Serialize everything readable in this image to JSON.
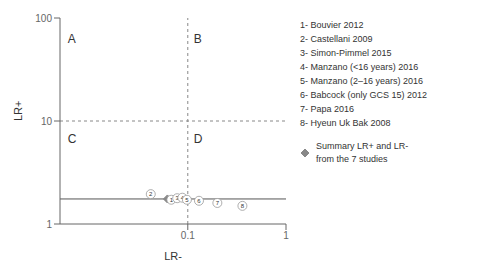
{
  "chart_data": {
    "type": "scatter",
    "xlabel": "LR-",
    "ylabel": "LR+",
    "log": true,
    "xlim": [
      0.005,
      1.0
    ],
    "ylim": [
      1.0,
      100.0
    ],
    "xticks": [
      0.1,
      1
    ],
    "yticks": [
      1,
      10,
      100
    ],
    "series": [
      {
        "type": "scatter",
        "marker": "circle",
        "color": "#999999",
        "x": [
          0.042,
          0.068,
          0.078,
          0.088,
          0.098,
          0.13,
          0.2,
          0.36
        ],
        "values": [
          1.95,
          1.72,
          1.78,
          1.8,
          1.72,
          1.68,
          1.6,
          1.5
        ],
        "point_labels": [
          "2",
          "1",
          "3",
          "4",
          "5",
          "6",
          "7",
          "8"
        ]
      }
    ],
    "summary_point": {
      "x": 0.062,
      "y": 1.75,
      "marker": "diamond",
      "color": "#888888"
    },
    "reference_lines": [
      {
        "x": 0.1,
        "line_style": "dashed",
        "color": "#888888"
      },
      {
        "y": 10,
        "line_style": "dashed",
        "color": "#888888"
      },
      {
        "y": 1.75,
        "line_style": "solid",
        "color": "#555555"
      }
    ],
    "annotations": [
      {
        "text": "A",
        "x": 0.006,
        "y": 70
      },
      {
        "text": "B",
        "x": 0.115,
        "y": 70
      },
      {
        "text": "C",
        "x": 0.006,
        "y": 7.5
      },
      {
        "text": "D",
        "x": 0.115,
        "y": 7.5
      }
    ],
    "legend_entries": [
      "1- Bouvier 2012",
      "2- Castellani 2009",
      "3- Simon-Pimmel 2015",
      "4- Manzano (<16 years) 2016",
      "5- Manzano (2–16 years) 2016",
      "6- Babcock (only GCS 15) 2012",
      "7- Papa 2016",
      "8- Hyeun Uk Bak 2008"
    ],
    "summary_legend": {
      "marker": "diamond",
      "color": "#888888",
      "text": "Summary LR+ and LR-\nfrom the 7 studies"
    }
  }
}
